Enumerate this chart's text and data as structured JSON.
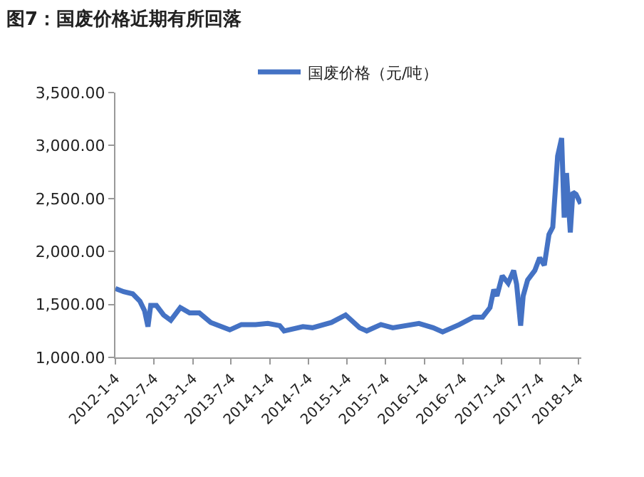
{
  "chart_data": {
    "type": "line",
    "title": "图7：国废价格近期有所回落",
    "x": [
      "2012-01-04",
      "2012-02-12",
      "2012-03-26",
      "2012-04-29",
      "2012-05-21",
      "2012-06-06",
      "2012-06-19",
      "2012-07-16",
      "2012-08-19",
      "2012-09-22",
      "2012-11-06",
      "2012-12-20",
      "2013-02-04",
      "2013-03-30",
      "2013-06-28",
      "2013-08-22",
      "2013-10-28",
      "2013-12-25",
      "2014-02-19",
      "2014-03-12",
      "2014-06-09",
      "2014-07-24",
      "2014-10-22",
      "2014-12-28",
      "2015-03-04",
      "2015-04-07",
      "2015-06-13",
      "2015-08-08",
      "2015-12-10",
      "2016-02-15",
      "2016-03-31",
      "2016-06-18",
      "2016-08-24",
      "2016-10-06",
      "2016-11-10",
      "2016-11-28",
      "2016-12-13",
      "2017-01-07",
      "2017-02-04",
      "2017-03-02",
      "2017-03-16",
      "2017-04-04",
      "2017-04-16",
      "2017-05-07",
      "2017-06-10",
      "2017-07-03",
      "2017-07-25",
      "2017-08-16",
      "2017-09-03",
      "2017-09-26",
      "2017-10-15",
      "2017-10-27",
      "2017-11-07",
      "2017-11-25",
      "2017-12-07",
      "2017-12-22",
      "2018-01-13"
    ],
    "series": [
      {
        "name": "国废价格（元/吨）",
        "color": "#4472c4",
        "values": [
          1650,
          1620,
          1600,
          1530,
          1440,
          1290,
          1490,
          1490,
          1400,
          1350,
          1470,
          1420,
          1420,
          1330,
          1260,
          1310,
          1310,
          1320,
          1300,
          1250,
          1290,
          1280,
          1330,
          1400,
          1280,
          1250,
          1310,
          1280,
          1320,
          1280,
          1240,
          1310,
          1380,
          1380,
          1470,
          1640,
          1580,
          1770,
          1700,
          1820,
          1690,
          1300,
          1580,
          1730,
          1820,
          1940,
          1870,
          2160,
          2230,
          2900,
          3070,
          2320,
          2740,
          2180,
          2560,
          2540,
          2450
        ]
      }
    ],
    "xlim": [
      "2012-01-04",
      "2018-01-16"
    ],
    "xticks": [
      {
        "value": "2012-01-04",
        "label": "2012-1-4"
      },
      {
        "value": "2012-07-04",
        "label": "2012-7-4"
      },
      {
        "value": "2013-01-04",
        "label": "2013-1-4"
      },
      {
        "value": "2013-07-04",
        "label": "2013-7-4"
      },
      {
        "value": "2014-01-04",
        "label": "2014-1-4"
      },
      {
        "value": "2014-07-04",
        "label": "2014-7-4"
      },
      {
        "value": "2015-01-04",
        "label": "2015-1-4"
      },
      {
        "value": "2015-07-04",
        "label": "2015-7-4"
      },
      {
        "value": "2016-01-04",
        "label": "2016-1-4"
      },
      {
        "value": "2016-07-04",
        "label": "2016-7-4"
      },
      {
        "value": "2017-01-04",
        "label": "2017-1-4"
      },
      {
        "value": "2017-07-04",
        "label": "2017-7-4"
      },
      {
        "value": "2018-01-04",
        "label": "2018-1-4"
      }
    ],
    "ylim": [
      1000,
      3500
    ],
    "yticks": [
      {
        "value": 1000,
        "label": "1,000.00"
      },
      {
        "value": 1500,
        "label": "1,500.00"
      },
      {
        "value": 2000,
        "label": "2,000.00"
      },
      {
        "value": 2500,
        "label": "2,500.00"
      },
      {
        "value": 3000,
        "label": "3,000.00"
      },
      {
        "value": 3500,
        "label": "3,500.00"
      }
    ],
    "legend": "top",
    "marker": "none",
    "line_style": "solid"
  }
}
